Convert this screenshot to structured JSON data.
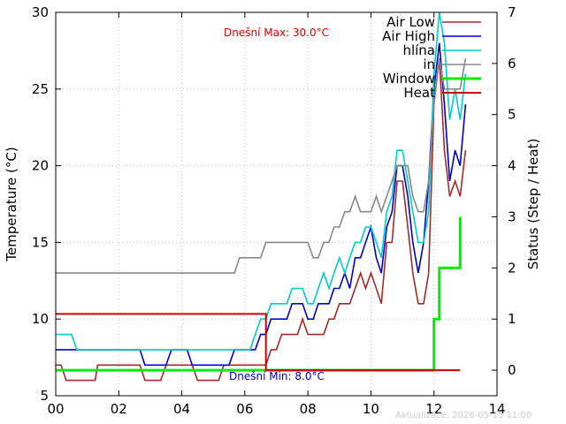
{
  "chart_data": {
    "type": "line",
    "title": "",
    "xlabel": "",
    "ylabel": "Temperature (°C)",
    "y2label": "Status (Step / Heat)",
    "xlim": [
      0,
      14
    ],
    "ylim": [
      5,
      30
    ],
    "y2lim": [
      -0.5,
      7
    ],
    "x_ticks": [
      0,
      2,
      4,
      6,
      8,
      10,
      12,
      14
    ],
    "x_tick_labels": [
      "00",
      "02",
      "04",
      "06",
      "08",
      "10",
      "12",
      "14"
    ],
    "y_ticks": [
      5,
      10,
      15,
      20,
      25,
      30
    ],
    "y2_ticks": [
      0,
      1,
      2,
      3,
      4,
      5,
      6,
      7
    ],
    "grid": true,
    "legend_position": "top-right",
    "annotations": {
      "max_text": "Dnešní Max: 30.0°C",
      "min_text": "Dnešní Min: 8.0°C",
      "updated_text": "Aktualizace: 2026-05-15 11:00"
    },
    "colors": {
      "air_low": "#a52a2a",
      "air_high": "#0000cc",
      "hlina": "#00cccc",
      "in": "#888888",
      "window": "#00ee00",
      "heat": "#cc0000",
      "max_text": "#dd0000",
      "min_text": "#0000cc",
      "updated_text": "#cccccc"
    },
    "series": [
      {
        "name": "Air Low",
        "axis": "y",
        "color": "#a52a2a",
        "points": [
          [
            0,
            7
          ],
          [
            0.17,
            7
          ],
          [
            0.33,
            6
          ],
          [
            1.25,
            6
          ],
          [
            1.33,
            7
          ],
          [
            2.67,
            7
          ],
          [
            2.83,
            6
          ],
          [
            3.33,
            6
          ],
          [
            3.5,
            7
          ],
          [
            4.33,
            7
          ],
          [
            4.5,
            6
          ],
          [
            5.17,
            6
          ],
          [
            5.33,
            7
          ],
          [
            6.67,
            7
          ],
          [
            6.83,
            8
          ],
          [
            7,
            8
          ],
          [
            7.17,
            9
          ],
          [
            7.67,
            9
          ],
          [
            7.83,
            10
          ],
          [
            8,
            9
          ],
          [
            8.5,
            9
          ],
          [
            8.67,
            10
          ],
          [
            8.83,
            10
          ],
          [
            9,
            11
          ],
          [
            9.33,
            11
          ],
          [
            9.5,
            12
          ],
          [
            9.67,
            13
          ],
          [
            9.83,
            12
          ],
          [
            10,
            13
          ],
          [
            10.17,
            12
          ],
          [
            10.33,
            11
          ],
          [
            10.5,
            15
          ],
          [
            10.67,
            15
          ],
          [
            10.83,
            19
          ],
          [
            11,
            19
          ],
          [
            11.17,
            16
          ],
          [
            11.33,
            13
          ],
          [
            11.5,
            11
          ],
          [
            11.67,
            11
          ],
          [
            11.83,
            13
          ],
          [
            12,
            24
          ],
          [
            12.17,
            27
          ],
          [
            12.33,
            21
          ],
          [
            12.5,
            18
          ],
          [
            12.67,
            19
          ],
          [
            12.83,
            18
          ],
          [
            13,
            21
          ]
        ]
      },
      {
        "name": "Air High",
        "axis": "y",
        "color": "#0000cc",
        "points": [
          [
            0,
            8
          ],
          [
            2.67,
            8
          ],
          [
            2.83,
            7
          ],
          [
            3.5,
            7
          ],
          [
            3.67,
            8
          ],
          [
            4.17,
            8
          ],
          [
            4.33,
            7
          ],
          [
            5.5,
            7
          ],
          [
            5.67,
            8
          ],
          [
            6.33,
            8
          ],
          [
            6.5,
            9
          ],
          [
            6.67,
            9
          ],
          [
            6.83,
            10
          ],
          [
            7.33,
            10
          ],
          [
            7.5,
            11
          ],
          [
            7.83,
            11
          ],
          [
            8,
            10
          ],
          [
            8.17,
            10
          ],
          [
            8.33,
            11
          ],
          [
            8.67,
            11
          ],
          [
            8.83,
            12
          ],
          [
            9,
            12
          ],
          [
            9.17,
            13
          ],
          [
            9.33,
            12
          ],
          [
            9.5,
            14
          ],
          [
            9.67,
            14
          ],
          [
            9.83,
            15
          ],
          [
            10,
            16
          ],
          [
            10.17,
            14
          ],
          [
            10.33,
            13
          ],
          [
            10.5,
            16
          ],
          [
            10.67,
            17
          ],
          [
            10.83,
            20
          ],
          [
            11,
            20
          ],
          [
            11.17,
            18
          ],
          [
            11.33,
            15
          ],
          [
            11.5,
            13
          ],
          [
            11.67,
            15
          ],
          [
            11.83,
            19
          ],
          [
            12,
            25
          ],
          [
            12.17,
            28
          ],
          [
            12.33,
            24
          ],
          [
            12.5,
            19
          ],
          [
            12.67,
            21
          ],
          [
            12.83,
            20
          ],
          [
            13,
            24
          ]
        ]
      },
      {
        "name": "hlína",
        "axis": "y",
        "color": "#00cccc",
        "points": [
          [
            0,
            9
          ],
          [
            0.5,
            9
          ],
          [
            0.67,
            8
          ],
          [
            6.17,
            8
          ],
          [
            6.33,
            9
          ],
          [
            6.5,
            10
          ],
          [
            6.67,
            10
          ],
          [
            6.83,
            11
          ],
          [
            7.33,
            11
          ],
          [
            7.5,
            12
          ],
          [
            7.83,
            12
          ],
          [
            8,
            11
          ],
          [
            8.17,
            11
          ],
          [
            8.33,
            12
          ],
          [
            8.5,
            13
          ],
          [
            8.67,
            12
          ],
          [
            8.83,
            13
          ],
          [
            9,
            14
          ],
          [
            9.17,
            13
          ],
          [
            9.33,
            14
          ],
          [
            9.5,
            15
          ],
          [
            9.67,
            15
          ],
          [
            9.83,
            16
          ],
          [
            10,
            16
          ],
          [
            10.17,
            15
          ],
          [
            10.33,
            14
          ],
          [
            10.5,
            17
          ],
          [
            10.67,
            18
          ],
          [
            10.83,
            21
          ],
          [
            11,
            21
          ],
          [
            11.17,
            19
          ],
          [
            11.33,
            17
          ],
          [
            11.5,
            15
          ],
          [
            11.67,
            15
          ],
          [
            11.83,
            17
          ],
          [
            12,
            26
          ],
          [
            12.17,
            30
          ],
          [
            12.33,
            28
          ],
          [
            12.5,
            23
          ],
          [
            12.67,
            25
          ],
          [
            12.83,
            23
          ],
          [
            13,
            26
          ]
        ]
      },
      {
        "name": "in",
        "axis": "y",
        "color": "#888888",
        "points": [
          [
            0,
            13
          ],
          [
            5.67,
            13
          ],
          [
            5.83,
            14
          ],
          [
            6.5,
            14
          ],
          [
            6.67,
            15
          ],
          [
            8,
            15
          ],
          [
            8.17,
            14
          ],
          [
            8.33,
            14
          ],
          [
            8.5,
            15
          ],
          [
            8.67,
            15
          ],
          [
            8.83,
            16
          ],
          [
            9,
            16
          ],
          [
            9.17,
            17
          ],
          [
            9.33,
            17
          ],
          [
            9.5,
            18
          ],
          [
            9.67,
            17
          ],
          [
            10,
            17
          ],
          [
            10.17,
            18
          ],
          [
            10.33,
            17
          ],
          [
            10.5,
            18
          ],
          [
            10.67,
            19
          ],
          [
            10.83,
            20
          ],
          [
            11.17,
            20
          ],
          [
            11.33,
            18
          ],
          [
            11.5,
            17
          ],
          [
            11.67,
            17
          ],
          [
            11.83,
            19
          ],
          [
            12,
            24
          ],
          [
            12.17,
            27
          ],
          [
            12.33,
            25
          ],
          [
            12.5,
            25
          ],
          [
            12.67,
            25
          ],
          [
            12.83,
            25
          ],
          [
            13,
            27
          ]
        ]
      },
      {
        "name": "Window",
        "axis": "y2",
        "color": "#00ee00",
        "points": [
          [
            0,
            0
          ],
          [
            12,
            0
          ],
          [
            12,
            1
          ],
          [
            12.17,
            1
          ],
          [
            12.17,
            2
          ],
          [
            12.83,
            2
          ],
          [
            12.83,
            3
          ]
        ]
      },
      {
        "name": "Heat",
        "axis": "y2",
        "color": "#cc0000",
        "points": [
          [
            0,
            1.1
          ],
          [
            6.67,
            1.1
          ],
          [
            6.67,
            0
          ],
          [
            12.83,
            0
          ]
        ]
      }
    ]
  }
}
